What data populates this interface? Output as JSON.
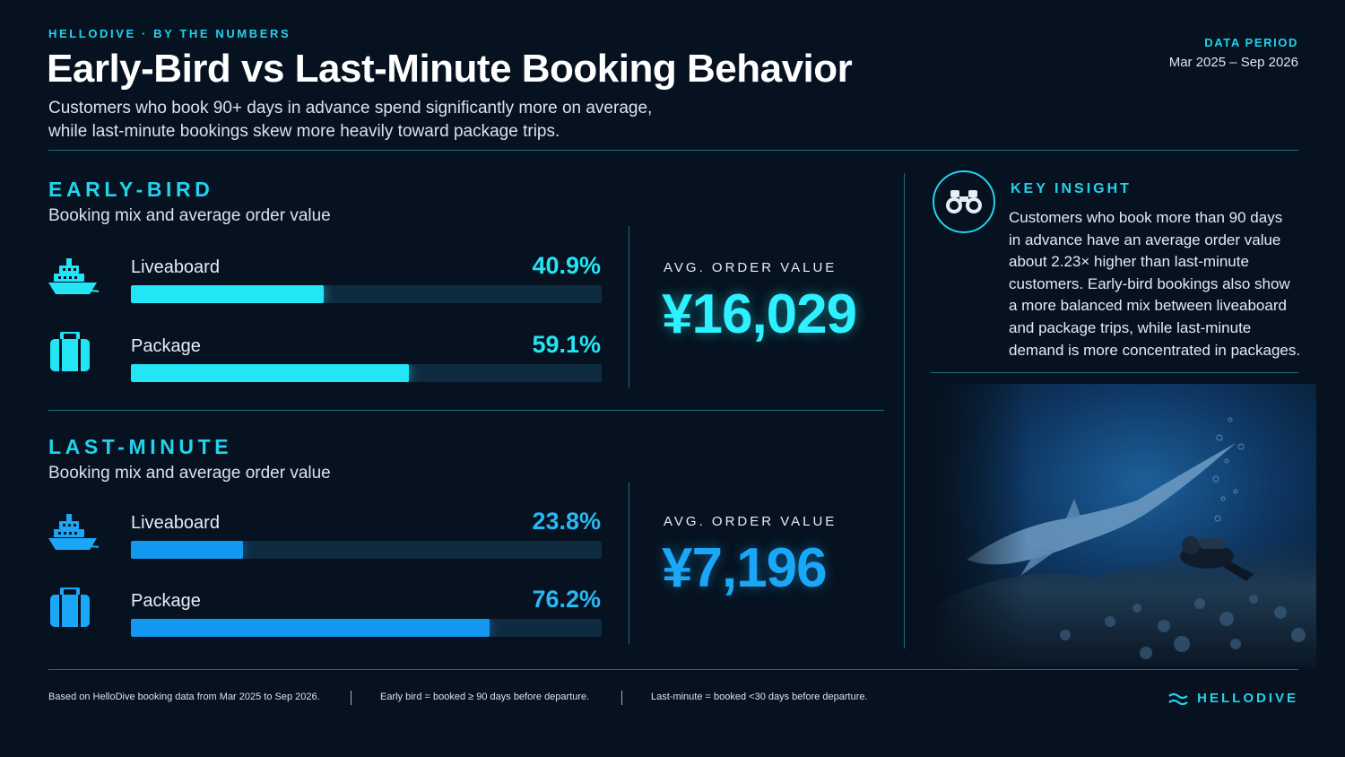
{
  "header": {
    "eyebrow": "HELLODIVE · BY THE NUMBERS",
    "title": "Early-Bird vs Last-Minute Booking Behavior",
    "subtitle_line1": "Customers who book 90+ days in advance spend significantly more on average,",
    "subtitle_line2": "while last-minute bookings skew more heavily toward package trips.",
    "period_label": "DATA PERIOD",
    "period_value": "Mar 2025 – Sep 2026"
  },
  "chart_data": [
    {
      "type": "bar",
      "orientation": "horizontal",
      "title": "EARLY-BIRD",
      "subtitle": "Booking mix and average order value",
      "categories": [
        "Liveaboard",
        "Package"
      ],
      "values": [
        40.9,
        59.1
      ],
      "labels": [
        "40.9%",
        "59.1%"
      ],
      "xlim": [
        0,
        100
      ],
      "color": "#22e5f5",
      "icons": [
        "ship-icon",
        "suitcase-icon"
      ],
      "kpi_label": "AVG. ORDER VALUE",
      "kpi_value": "¥16,029"
    },
    {
      "type": "bar",
      "orientation": "horizontal",
      "title": "LAST-MINUTE",
      "subtitle": "Booking mix and average order value",
      "categories": [
        "Liveaboard",
        "Package"
      ],
      "values": [
        23.8,
        76.2
      ],
      "labels": [
        "23.8%",
        "76.2%"
      ],
      "xlim": [
        0,
        100
      ],
      "color": "#1298f0",
      "icons": [
        "ship-icon",
        "suitcase-icon"
      ],
      "kpi_label": "AVG. ORDER VALUE",
      "kpi_value": "¥7,196"
    }
  ],
  "insight": {
    "icon": "binoculars-icon",
    "title": "KEY INSIGHT",
    "lines": [
      "Customers who book more than 90 days",
      "in advance have an average order value",
      "about 2.23× higher than last-minute",
      "customers. Early-bird bookings also show",
      "a more balanced mix between liveaboard",
      "and package trips, while last-minute",
      "demand is more concentrated in packages."
    ]
  },
  "footer": {
    "note1": "Based on HelloDive booking data from Mar 2025 to Sep 2026.",
    "note2": "Early bird = booked ≥ 90 days before departure.",
    "note3": "Last-minute = booked <30 days before departure.",
    "brand": "HELLODIVE"
  },
  "colors": {
    "accent": "#22d3ee",
    "early": "#22e5f5",
    "late": "#1298f0",
    "background": "#06121f"
  }
}
